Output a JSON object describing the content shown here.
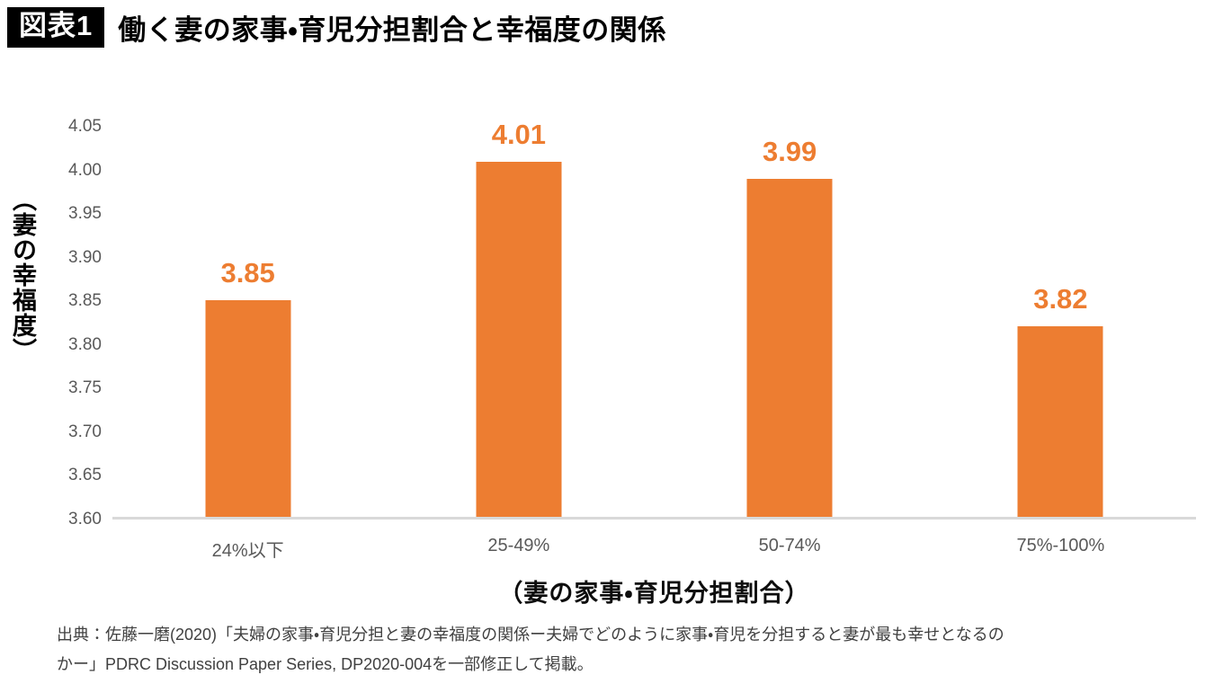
{
  "header": {
    "badge": "図表1",
    "title": "働く妻の家事・育児分担割合と幸福度の関係"
  },
  "chart_data": {
    "type": "bar",
    "title": "働く妻の家事・育児分担割合と幸福度の関係",
    "categories": [
      "24%以下",
      "25-49%",
      "50-74%",
      "75%-100%"
    ],
    "values": [
      3.85,
      4.01,
      3.99,
      3.82
    ],
    "value_labels": [
      "3.85",
      "4.01",
      "3.99",
      "3.82"
    ],
    "xlabel": "（妻の家事・育児分担割合）",
    "ylabel": "（妻の幸福度）",
    "ylim": [
      3.6,
      4.05
    ],
    "ytick_step": 0.05,
    "yticks": [
      "4.05",
      "4.00",
      "3.95",
      "3.90",
      "3.85",
      "3.80",
      "3.75",
      "3.70",
      "3.65",
      "3.60"
    ],
    "grid": false,
    "legend": "none",
    "colors": {
      "bar": "#ED7D31",
      "value_label": "#ED7D31",
      "axis_line": "#D9D9D9",
      "tick_text": "#595959",
      "category_text": "#595959"
    }
  },
  "source": {
    "lines": [
      "出典：佐藤一磨(2020)「夫婦の家事・育児分担と妻の幸福度の関係ー夫婦でどのように家事・育児を分担すると妻が最も幸せとなるの",
      "かー」PDRC Discussion Paper Series, DP2020-004を一部修正して掲載。"
    ]
  }
}
